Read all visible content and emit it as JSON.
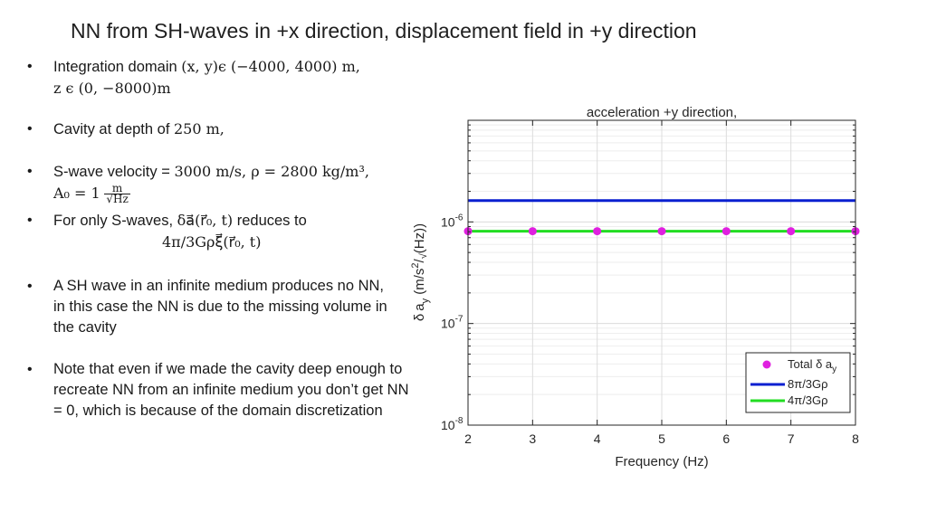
{
  "slide": {
    "title": "NN from SH-waves in +x direction, displacement field in +y direction"
  },
  "bullets": [
    {
      "marker": "•",
      "text_a": "Integration domain ",
      "math_a": "(x, y)ϵ (−4000, 4000) m,",
      "math_b": "z ϵ (0, −8000)m"
    },
    {
      "marker": "•",
      "text_a": "Cavity at depth of ",
      "math_a": "250 m,"
    },
    {
      "marker": "•",
      "text_a": "S-wave velocity = ",
      "math_a": "3000 m/s, ρ = 2800 kg/m³,",
      "math_b": "A₀ = 1",
      "frac_num": "m",
      "frac_den": "√Hz"
    },
    {
      "marker": "•",
      "text_a": "For only S-waves, ",
      "math_a": "δa⃗(r⃗₀, t)",
      "text_b": " reduces to",
      "math_b": "4π/3Gρξ⃗(r⃗₀, t)"
    },
    {
      "marker": "•",
      "text_a": "A SH wave in an infinite medium produces no NN, in this case the NN is due to the missing volume in the cavity"
    },
    {
      "marker": "•",
      "text_a": "Note that even if we made the cavity deep enough to recreate NN from an infinite medium you don’t get NN = 0, which is because of the domain discretization"
    }
  ],
  "chart_data": {
    "type": "line",
    "title": "acceleration +y direction,",
    "xlabel": "Frequency (Hz)",
    "ylabel": "δ a_y (m/s²/√(Hz))",
    "ylabel_parts": {
      "delta": "δ",
      "a": "a",
      "sub": "y",
      "open": " (m/s",
      "sup": "2",
      "slash": "/",
      "sqrt": "√",
      "close": "(Hz))"
    },
    "xlim": [
      2,
      8
    ],
    "ylim": [
      1e-08,
      1e-05
    ],
    "yscale": "log",
    "xticks": [
      2,
      3,
      4,
      5,
      6,
      7,
      8
    ],
    "yticks": [
      {
        "value": 1e-08,
        "base": "10",
        "exp": "-8"
      },
      {
        "value": 1e-07,
        "base": "10",
        "exp": "-7"
      },
      {
        "value": 1e-06,
        "base": "10",
        "exp": "-6"
      }
    ],
    "grid": true,
    "legend_position": "bottom-right",
    "series": [
      {
        "name": "Total δ a_y",
        "legend_label": "Total δ a",
        "legend_sub": "y",
        "style": "markers",
        "color": "#e020e0",
        "x": [
          2,
          3,
          4,
          5,
          6,
          7,
          8
        ],
        "y": [
          8.1e-07,
          8.1e-07,
          8.1e-07,
          8.1e-07,
          8.1e-07,
          8.1e-07,
          8.1e-07
        ]
      },
      {
        "name": "8π/3Gρ",
        "legend_label": "8π/3Gρ",
        "style": "line",
        "color": "#0a1fd0",
        "x": [
          2,
          8
        ],
        "y": [
          1.62e-06,
          1.62e-06
        ]
      },
      {
        "name": "4π/3Gρ",
        "legend_label": "4π/3Gρ",
        "style": "line",
        "color": "#22dd22",
        "x": [
          2,
          8
        ],
        "y": [
          8.1e-07,
          8.1e-07
        ]
      }
    ]
  }
}
